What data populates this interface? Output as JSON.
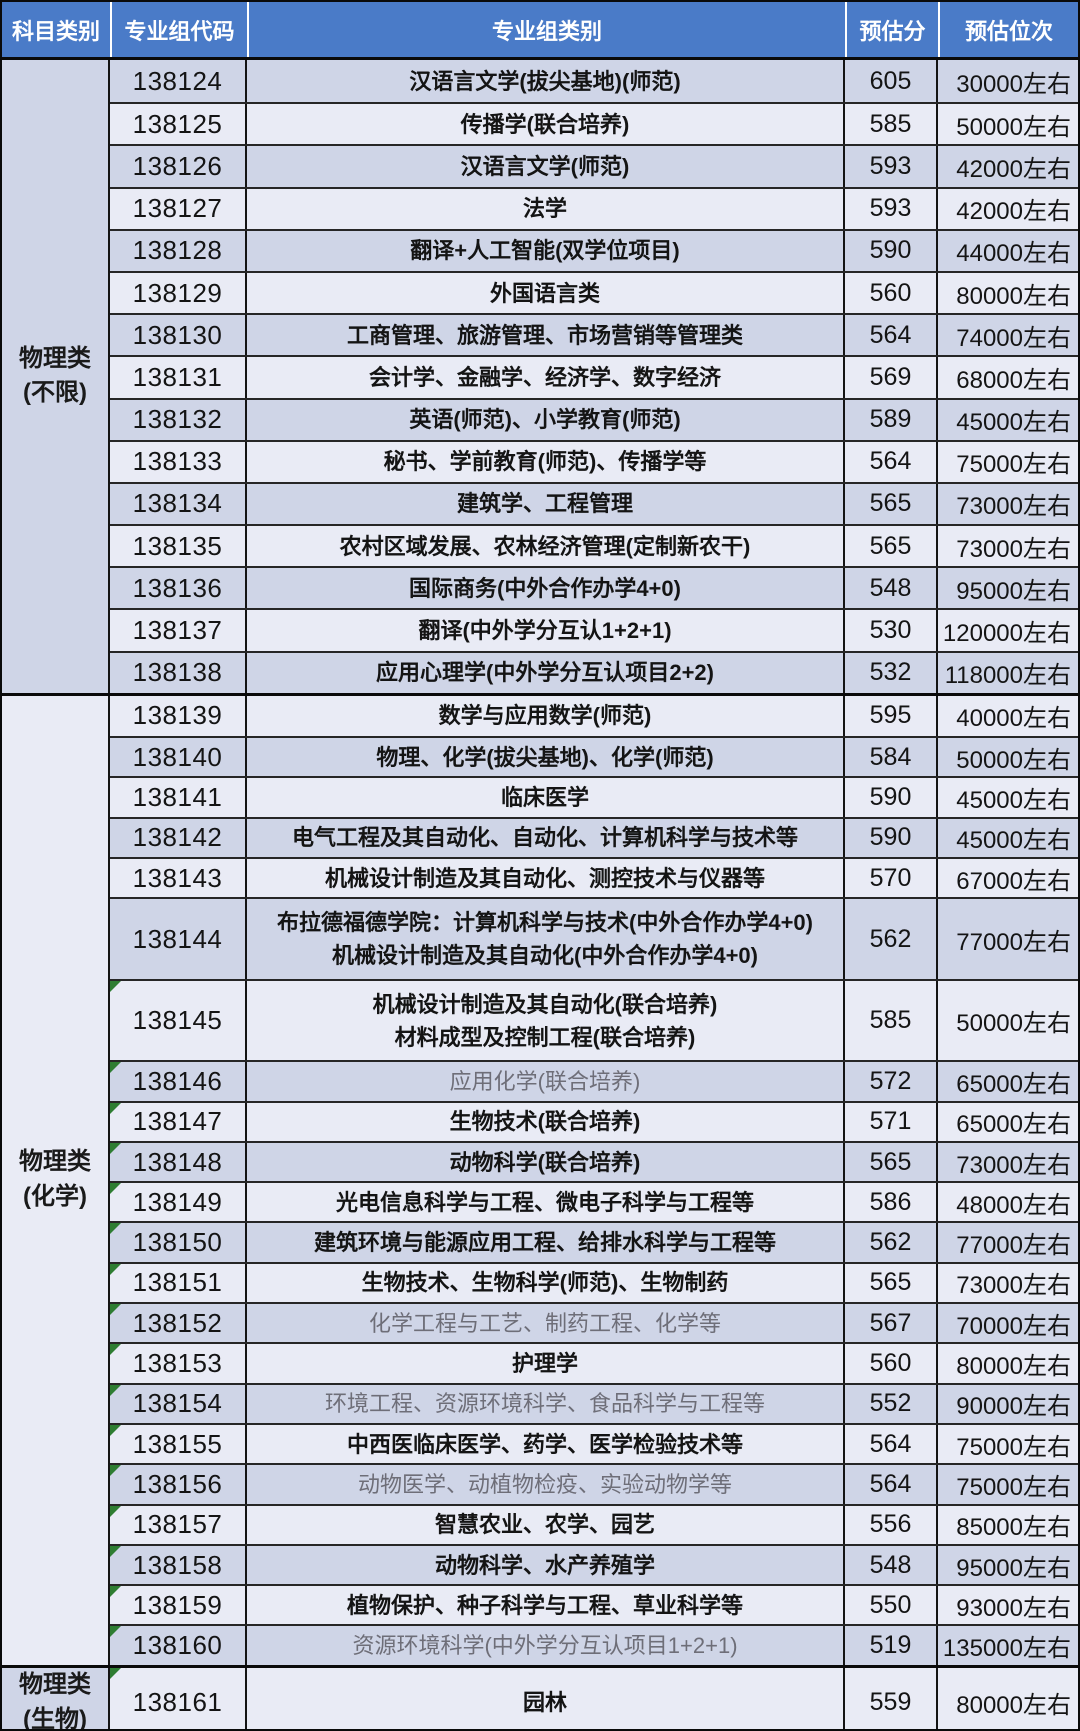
{
  "table": {
    "columns": [
      "科目类别",
      "专业组代码",
      "专业组类别",
      "预估分",
      "预估位次"
    ]
  },
  "colors": {
    "header_bg": "#4a7bc8",
    "header_text": "#ffffff",
    "row_dark": "#cfd5e7",
    "row_light": "#e9ebf5",
    "gray_text": "#6e6e78",
    "marker_green": "#2e7d32"
  },
  "sections": [
    {
      "category": "物理类\n(不限)",
      "rows": [
        {
          "code": "138124",
          "major": "汉语言文学(拔尖基地)(师范)",
          "score": "605",
          "rank": "30000左右",
          "marker": false,
          "gray": false
        },
        {
          "code": "138125",
          "major": "传播学(联合培养)",
          "score": "585",
          "rank": "50000左右",
          "marker": false,
          "gray": false
        },
        {
          "code": "138126",
          "major": "汉语言文学(师范)",
          "score": "593",
          "rank": "42000左右",
          "marker": false,
          "gray": false
        },
        {
          "code": "138127",
          "major": "法学",
          "score": "593",
          "rank": "42000左右",
          "marker": false,
          "gray": false
        },
        {
          "code": "138128",
          "major": "翻译+人工智能(双学位项目)",
          "score": "590",
          "rank": "44000左右",
          "marker": false,
          "gray": false
        },
        {
          "code": "138129",
          "major": "外国语言类",
          "score": "560",
          "rank": "80000左右",
          "marker": false,
          "gray": false
        },
        {
          "code": "138130",
          "major": "工商管理、旅游管理、市场营销等管理类",
          "score": "564",
          "rank": "74000左右",
          "marker": false,
          "gray": false
        },
        {
          "code": "138131",
          "major": "会计学、金融学、经济学、数字经济",
          "score": "569",
          "rank": "68000左右",
          "marker": false,
          "gray": false
        },
        {
          "code": "138132",
          "major": "英语(师范)、小学教育(师范)",
          "score": "589",
          "rank": "45000左右",
          "marker": false,
          "gray": false
        },
        {
          "code": "138133",
          "major": "秘书、学前教育(师范)、传播学等",
          "score": "564",
          "rank": "75000左右",
          "marker": false,
          "gray": false
        },
        {
          "code": "138134",
          "major": "建筑学、工程管理",
          "score": "565",
          "rank": "73000左右",
          "marker": false,
          "gray": false
        },
        {
          "code": "138135",
          "major": "农村区域发展、农林经济管理(定制新农干)",
          "score": "565",
          "rank": "73000左右",
          "marker": false,
          "gray": false
        },
        {
          "code": "138136",
          "major": "国际商务(中外合作办学4+0)",
          "score": "548",
          "rank": "95000左右",
          "marker": false,
          "gray": false
        },
        {
          "code": "138137",
          "major": "翻译(中外学分互认1+2+1)",
          "score": "530",
          "rank": "120000左右",
          "marker": false,
          "gray": false
        },
        {
          "code": "138138",
          "major": "应用心理学(中外学分互认项目2+2)",
          "score": "532",
          "rank": "118000左右",
          "marker": false,
          "gray": false
        }
      ]
    },
    {
      "category": "物理类\n(化学)",
      "rows": [
        {
          "code": "138139",
          "major": "数学与应用数学(师范)",
          "score": "595",
          "rank": "40000左右",
          "marker": false,
          "gray": false
        },
        {
          "code": "138140",
          "major": "物理、化学(拔尖基地)、化学(师范)",
          "score": "584",
          "rank": "50000左右",
          "marker": false,
          "gray": false
        },
        {
          "code": "138141",
          "major": "临床医学",
          "score": "590",
          "rank": "45000左右",
          "marker": false,
          "gray": false
        },
        {
          "code": "138142",
          "major": "电气工程及其自动化、自动化、计算机科学与技术等",
          "score": "590",
          "rank": "45000左右",
          "marker": false,
          "gray": false
        },
        {
          "code": "138143",
          "major": "机械设计制造及其自动化、测控技术与仪器等",
          "score": "570",
          "rank": "67000左右",
          "marker": false,
          "gray": false
        },
        {
          "code": "138144",
          "major": "布拉德福德学院：计算机科学与技术(中外合作办学4+0)\n机械设计制造及其自动化(中外合作办学4+0)",
          "score": "562",
          "rank": "77000左右",
          "marker": false,
          "gray": false
        },
        {
          "code": "138145",
          "major": "机械设计制造及其自动化(联合培养)\n材料成型及控制工程(联合培养)",
          "score": "585",
          "rank": "50000左右",
          "marker": true,
          "gray": false
        },
        {
          "code": "138146",
          "major": "应用化学(联合培养)",
          "score": "572",
          "rank": "65000左右",
          "marker": true,
          "gray": true
        },
        {
          "code": "138147",
          "major": "生物技术(联合培养)",
          "score": "571",
          "rank": "65000左右",
          "marker": true,
          "gray": false
        },
        {
          "code": "138148",
          "major": "动物科学(联合培养)",
          "score": "565",
          "rank": "73000左右",
          "marker": true,
          "gray": false
        },
        {
          "code": "138149",
          "major": "光电信息科学与工程、微电子科学与工程等",
          "score": "586",
          "rank": "48000左右",
          "marker": true,
          "gray": false
        },
        {
          "code": "138150",
          "major": "建筑环境与能源应用工程、给排水科学与工程等",
          "score": "562",
          "rank": "77000左右",
          "marker": true,
          "gray": false
        },
        {
          "code": "138151",
          "major": "生物技术、生物科学(师范)、生物制药",
          "score": "565",
          "rank": "73000左右",
          "marker": true,
          "gray": false
        },
        {
          "code": "138152",
          "major": "化学工程与工艺、制药工程、化学等",
          "score": "567",
          "rank": "70000左右",
          "marker": true,
          "gray": true
        },
        {
          "code": "138153",
          "major": "护理学",
          "score": "560",
          "rank": "80000左右",
          "marker": true,
          "gray": false
        },
        {
          "code": "138154",
          "major": "环境工程、资源环境科学、食品科学与工程等",
          "score": "552",
          "rank": "90000左右",
          "marker": true,
          "gray": true
        },
        {
          "code": "138155",
          "major": "中西医临床医学、药学、医学检验技术等",
          "score": "564",
          "rank": "75000左右",
          "marker": true,
          "gray": false
        },
        {
          "code": "138156",
          "major": "动物医学、动植物检疫、实验动物学等",
          "score": "564",
          "rank": "75000左右",
          "marker": true,
          "gray": true
        },
        {
          "code": "138157",
          "major": "智慧农业、农学、园艺",
          "score": "556",
          "rank": "85000左右",
          "marker": true,
          "gray": false
        },
        {
          "code": "138158",
          "major": "动物科学、水产养殖学",
          "score": "548",
          "rank": "95000左右",
          "marker": true,
          "gray": false
        },
        {
          "code": "138159",
          "major": "植物保护、种子科学与工程、草业科学等",
          "score": "550",
          "rank": "93000左右",
          "marker": true,
          "gray": false
        },
        {
          "code": "138160",
          "major": "资源环境科学(中外学分互认项目1+2+1)",
          "score": "519",
          "rank": "135000左右",
          "marker": true,
          "gray": true
        }
      ]
    },
    {
      "category": "物理类\n(生物)",
      "rows": [
        {
          "code": "138161",
          "major": "园林",
          "score": "559",
          "rank": "80000左右",
          "marker": true,
          "gray": false
        }
      ]
    }
  ]
}
